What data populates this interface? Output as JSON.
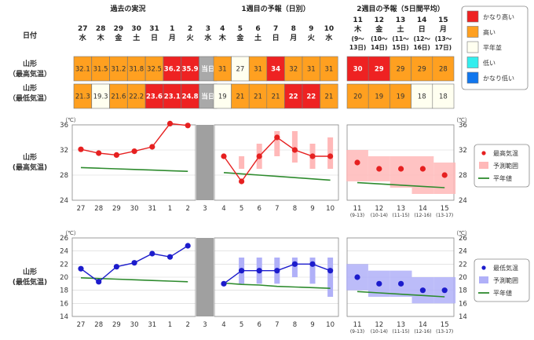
{
  "header": {
    "past_title": "過去の実況",
    "week1_title": "1週目の予報（日別）",
    "week2_title": "2週目の予報（5日間平均）",
    "date_label": "日付"
  },
  "days": [
    {
      "d": "27",
      "w": "水"
    },
    {
      "d": "28",
      "w": "木"
    },
    {
      "d": "29",
      "w": "金"
    },
    {
      "d": "30",
      "w": "土"
    },
    {
      "d": "31",
      "w": "日"
    },
    {
      "d": "1",
      "w": "月"
    },
    {
      "d": "2",
      "w": "火"
    },
    {
      "d": "3",
      "w": "水"
    },
    {
      "d": "4",
      "w": "木"
    },
    {
      "d": "5",
      "w": "金"
    },
    {
      "d": "6",
      "w": "土"
    },
    {
      "d": "7",
      "w": "日"
    },
    {
      "d": "8",
      "w": "月"
    },
    {
      "d": "9",
      "w": "火"
    },
    {
      "d": "10",
      "w": "水"
    }
  ],
  "week2_days": [
    {
      "d": "11",
      "w": "木",
      "r": "(9～",
      "r2": "13日)"
    },
    {
      "d": "12",
      "w": "金",
      "r": "(10～",
      "r2": "14日)"
    },
    {
      "d": "13",
      "w": "土",
      "r": "(11～",
      "r2": "15日)"
    },
    {
      "d": "14",
      "w": "日",
      "r": "(12～",
      "r2": "16日)"
    },
    {
      "d": "15",
      "w": "月",
      "r": "(13～",
      "r2": "17日)"
    }
  ],
  "table": {
    "max_label": [
      "山形",
      "（最高気温）"
    ],
    "min_label": [
      "山形",
      "（最低気温）"
    ],
    "today_label": "当日",
    "max_row": [
      {
        "v": "32.1",
        "c": "orange"
      },
      {
        "v": "31.5",
        "c": "orange"
      },
      {
        "v": "31.2",
        "c": "orange"
      },
      {
        "v": "31.8",
        "c": "orange"
      },
      {
        "v": "32.5",
        "c": "orange"
      },
      {
        "v": "36.2",
        "c": "red"
      },
      {
        "v": "35.9",
        "c": "red"
      },
      {
        "v": "当日",
        "c": "gray"
      },
      {
        "v": "31",
        "c": "orange"
      },
      {
        "v": "27",
        "c": "white"
      },
      {
        "v": "31",
        "c": "orange"
      },
      {
        "v": "34",
        "c": "red"
      },
      {
        "v": "32",
        "c": "orange"
      },
      {
        "v": "31",
        "c": "orange"
      },
      {
        "v": "31",
        "c": "orange"
      }
    ],
    "min_row": [
      {
        "v": "21.3",
        "c": "orange"
      },
      {
        "v": "19.3",
        "c": "white"
      },
      {
        "v": "21.6",
        "c": "orange"
      },
      {
        "v": "22.2",
        "c": "orange"
      },
      {
        "v": "23.6",
        "c": "red"
      },
      {
        "v": "23.1",
        "c": "red"
      },
      {
        "v": "24.8",
        "c": "red"
      },
      {
        "v": "当日",
        "c": "gray"
      },
      {
        "v": "19",
        "c": "white"
      },
      {
        "v": "21",
        "c": "orange"
      },
      {
        "v": "21",
        "c": "orange"
      },
      {
        "v": "21",
        "c": "orange"
      },
      {
        "v": "22",
        "c": "red"
      },
      {
        "v": "22",
        "c": "red"
      },
      {
        "v": "21",
        "c": "orange"
      }
    ],
    "week2_max_row": [
      {
        "v": "30",
        "c": "red"
      },
      {
        "v": "29",
        "c": "red"
      },
      {
        "v": "29",
        "c": "orange"
      },
      {
        "v": "29",
        "c": "orange"
      },
      {
        "v": "28",
        "c": "orange"
      }
    ],
    "week2_min_row": [
      {
        "v": "20",
        "c": "orange"
      },
      {
        "v": "19",
        "c": "orange"
      },
      {
        "v": "19",
        "c": "orange"
      },
      {
        "v": "18",
        "c": "white"
      },
      {
        "v": "18",
        "c": "white"
      }
    ]
  },
  "colors": {
    "red": "#ee2222",
    "orange": "#ffa020",
    "white": "#fffff0",
    "gray": "#a9a9a9",
    "cyan": "#33eeee",
    "blue": "#1177ee",
    "maxline": "#e62020",
    "maxrange": "#ffb8b8",
    "minline": "#1c1ccc",
    "minrange": "#b0b0f8",
    "normal": "#2e8b2e"
  },
  "legend_table": [
    {
      "label": "かなり高い",
      "c": "red"
    },
    {
      "label": "高い",
      "c": "orange"
    },
    {
      "label": "平年並",
      "c": "white"
    },
    {
      "label": "低い",
      "c": "cyan"
    },
    {
      "label": "かなり低い",
      "c": "blue"
    }
  ],
  "chart_data": [
    {
      "type": "line",
      "title": "山形（最高気温）",
      "ylabel": "（℃）",
      "ylim": [
        24,
        36
      ],
      "yticks": [
        24,
        28,
        32,
        36
      ],
      "x": [
        "27",
        "28",
        "29",
        "30",
        "31",
        "1",
        "2",
        "3",
        "4",
        "5",
        "6",
        "7",
        "8",
        "9",
        "10"
      ],
      "observed": [
        32.1,
        31.5,
        31.2,
        31.8,
        32.5,
        36.2,
        35.9,
        null,
        null,
        null,
        null,
        null,
        null,
        null,
        null
      ],
      "forecast": [
        null,
        null,
        null,
        null,
        null,
        null,
        null,
        null,
        31,
        27,
        31,
        34,
        32,
        31,
        31
      ],
      "forecast_range": [
        null,
        null,
        null,
        null,
        null,
        null,
        null,
        null,
        null,
        [
          29,
          31
        ],
        [
          29,
          33
        ],
        [
          31,
          35
        ],
        [
          30,
          35
        ],
        [
          29,
          33
        ],
        [
          29,
          34
        ]
      ],
      "normal": [
        29.2,
        29.1,
        29.0,
        28.9,
        28.8,
        28.7,
        28.6,
        null,
        28.4,
        28.2,
        28.0,
        27.8,
        27.6,
        27.4,
        27.2
      ],
      "week2_x": [
        "11",
        "12",
        "13",
        "14",
        "15"
      ],
      "week2_sub": [
        "(9-13)",
        "(10-14)",
        "(11-15)",
        "(12-16)",
        "(13-17)"
      ],
      "week2_mean": [
        30,
        29,
        29,
        29,
        28
      ],
      "week2_range": [
        [
          27,
          32
        ],
        [
          27,
          31
        ],
        [
          26,
          31
        ],
        [
          25,
          31
        ],
        [
          25,
          30
        ]
      ],
      "week2_normal": [
        26.8,
        26.6,
        26.4,
        26.2,
        26.0
      ],
      "legend": [
        "最高気温",
        "予測範囲",
        "平年値"
      ]
    },
    {
      "type": "line",
      "title": "山形（最低気温）",
      "ylabel": "（℃）",
      "ylim": [
        14,
        26
      ],
      "yticks": [
        14,
        16,
        18,
        20,
        22,
        24,
        26
      ],
      "x": [
        "27",
        "28",
        "29",
        "30",
        "31",
        "1",
        "2",
        "3",
        "4",
        "5",
        "6",
        "7",
        "8",
        "9",
        "10"
      ],
      "observed": [
        21.3,
        19.3,
        21.6,
        22.2,
        23.6,
        23.1,
        24.8,
        null,
        null,
        null,
        null,
        null,
        null,
        null,
        null
      ],
      "forecast": [
        null,
        null,
        null,
        null,
        null,
        null,
        null,
        null,
        19,
        21,
        21,
        21,
        22,
        22,
        21
      ],
      "forecast_range": [
        null,
        null,
        null,
        null,
        null,
        null,
        null,
        null,
        null,
        [
          19,
          23
        ],
        [
          19,
          23
        ],
        [
          19,
          23
        ],
        [
          20,
          23
        ],
        [
          19,
          23
        ],
        [
          17,
          23
        ]
      ],
      "normal": [
        19.9,
        19.8,
        19.7,
        19.6,
        19.5,
        19.4,
        19.3,
        null,
        19.1,
        18.9,
        18.8,
        18.6,
        18.5,
        18.4,
        18.3
      ],
      "week2_x": [
        "11",
        "12",
        "13",
        "14",
        "15"
      ],
      "week2_sub": [
        "(9-13)",
        "(10-14)",
        "(11-15)",
        "(12-16)",
        "(13-17)"
      ],
      "week2_mean": [
        20,
        19,
        19,
        18,
        18
      ],
      "week2_range": [
        [
          18,
          22
        ],
        [
          17,
          21
        ],
        [
          17,
          21
        ],
        [
          16,
          20
        ],
        [
          16,
          20
        ]
      ],
      "week2_normal": [
        17.8,
        17.6,
        17.4,
        17.2,
        17.0
      ],
      "legend": [
        "最低気温",
        "予測範囲",
        "平年値"
      ]
    }
  ]
}
